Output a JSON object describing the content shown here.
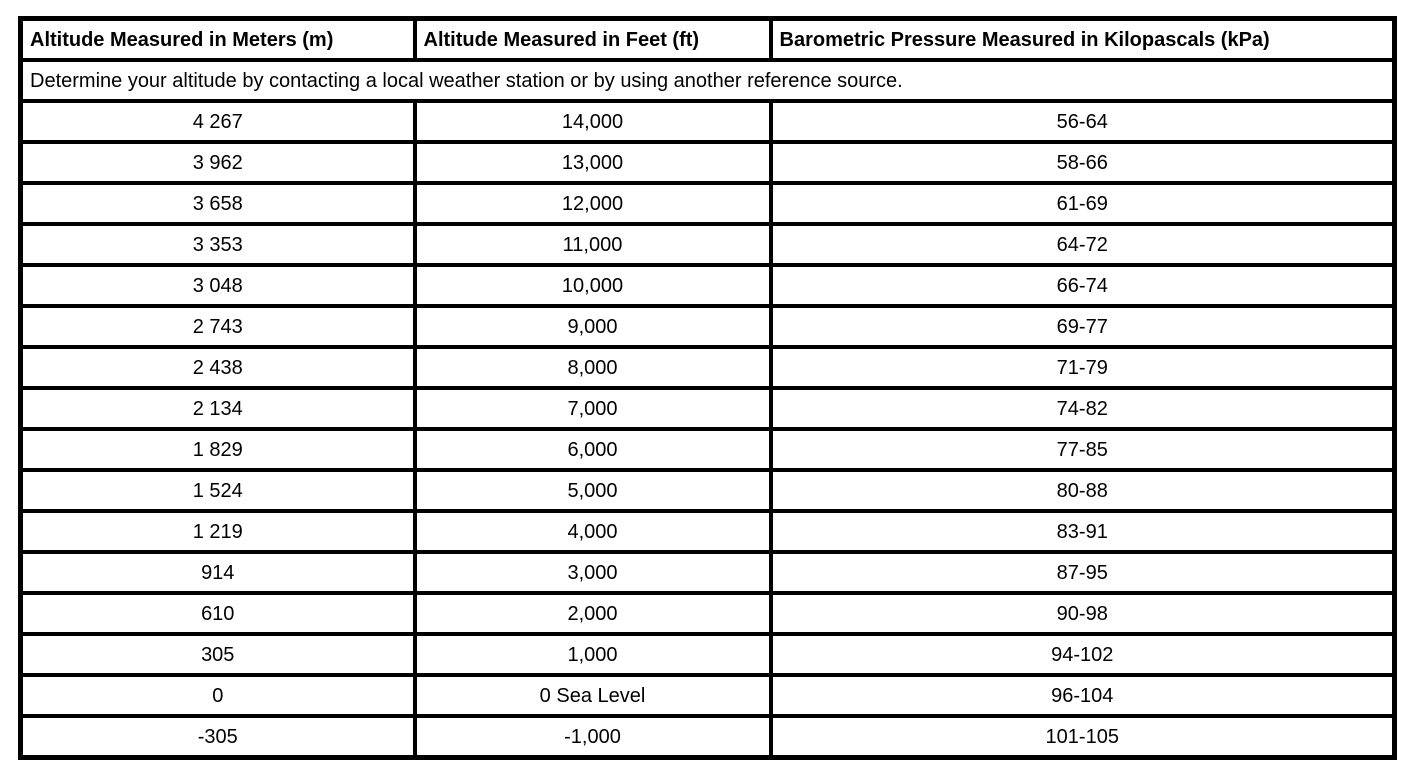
{
  "table": {
    "headers": [
      "Altitude Measured in Meters (m)",
      "Altitude Measured in Feet (ft)",
      "Barometric Pressure Measured in Kilopascals (kPa)"
    ],
    "note": "Determine your altitude by contacting a local weather station or by using another reference source.",
    "border_color": "#000000",
    "rows": [
      {
        "meters": "4 267",
        "feet": "14,000",
        "kpa": "56-64"
      },
      {
        "meters": "3 962",
        "feet": "13,000",
        "kpa": "58-66"
      },
      {
        "meters": "3 658",
        "feet": "12,000",
        "kpa": "61-69"
      },
      {
        "meters": "3 353",
        "feet": "11,000",
        "kpa": "64-72"
      },
      {
        "meters": "3 048",
        "feet": "10,000",
        "kpa": "66-74"
      },
      {
        "meters": "2 743",
        "feet": "9,000",
        "kpa": "69-77"
      },
      {
        "meters": "2 438",
        "feet": "8,000",
        "kpa": "71-79"
      },
      {
        "meters": "2 134",
        "feet": "7,000",
        "kpa": "74-82"
      },
      {
        "meters": "1 829",
        "feet": "6,000",
        "kpa": "77-85"
      },
      {
        "meters": "1 524",
        "feet": "5,000",
        "kpa": "80-88"
      },
      {
        "meters": "1 219",
        "feet": "4,000",
        "kpa": "83-91"
      },
      {
        "meters": "914",
        "feet": "3,000",
        "kpa": "87-95"
      },
      {
        "meters": "610",
        "feet": "2,000",
        "kpa": "90-98"
      },
      {
        "meters": "305",
        "feet": "1,000",
        "kpa": "94-102"
      },
      {
        "meters": "0",
        "feet": "0 Sea Level",
        "kpa": "96-104"
      },
      {
        "meters": "-305",
        "feet": "-1,000",
        "kpa": "101-105"
      }
    ]
  }
}
